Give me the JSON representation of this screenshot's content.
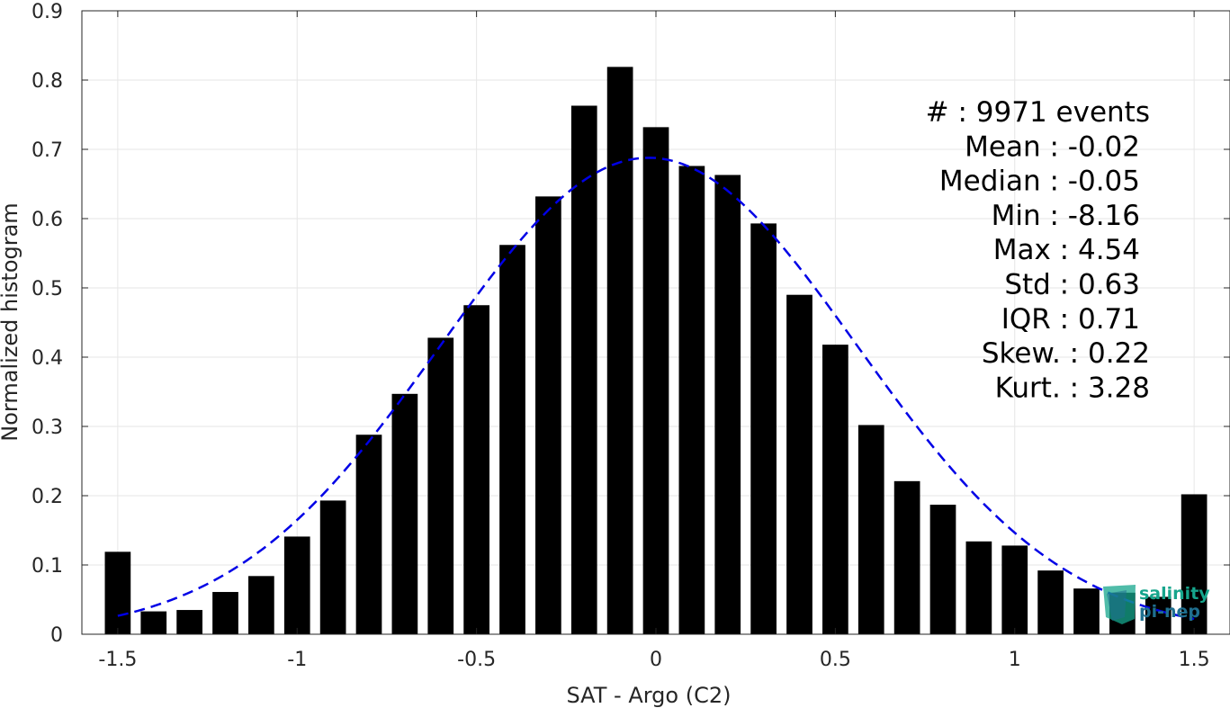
{
  "chart_data": {
    "type": "bar",
    "title": "",
    "xlabel": "SAT - Argo (C2)",
    "ylabel": "Normalized histogram",
    "xlim": [
      -1.6,
      1.6
    ],
    "ylim": [
      0,
      0.9
    ],
    "grid": true,
    "xticks": [
      -1.5,
      -1,
      -0.5,
      0,
      0.5,
      1,
      1.5
    ],
    "xtick_labels": [
      "-1.5",
      "-1",
      "-0.5",
      "0",
      "0.5",
      "1",
      "1.5"
    ],
    "yticks": [
      0,
      0.1,
      0.2,
      0.3,
      0.4,
      0.5,
      0.6,
      0.7,
      0.8,
      0.9
    ],
    "ytick_labels": [
      "0",
      "0.1",
      "0.2",
      "0.3",
      "0.4",
      "0.5",
      "0.6",
      "0.7",
      "0.8",
      "0.9"
    ],
    "bar_color": "#000000",
    "bin_width": 0.1,
    "x": [
      -1.5,
      -1.4,
      -1.3,
      -1.2,
      -1.1,
      -1.0,
      -0.9,
      -0.8,
      -0.7,
      -0.6,
      -0.5,
      -0.4,
      -0.3,
      -0.2,
      -0.1,
      0.0,
      0.1,
      0.2,
      0.3,
      0.4,
      0.5,
      0.6,
      0.7,
      0.8,
      0.9,
      1.0,
      1.1,
      1.2,
      1.3,
      1.4,
      1.5
    ],
    "values": [
      0.119,
      0.033,
      0.035,
      0.061,
      0.084,
      0.141,
      0.193,
      0.288,
      0.347,
      0.428,
      0.475,
      0.562,
      0.632,
      0.763,
      0.819,
      0.732,
      0.676,
      0.663,
      0.593,
      0.49,
      0.418,
      0.302,
      0.221,
      0.187,
      0.134,
      0.128,
      0.092,
      0.066,
      0.06,
      0.054,
      0.202
    ],
    "fit_curve": {
      "type": "gaussian",
      "color": "#0000e6",
      "style": "dashed",
      "mean": -0.02,
      "std": 0.58,
      "x_range": [
        -1.5,
        1.5
      ]
    },
    "annotations": [
      "#  : 9971 events",
      "Mean : -0.02",
      "Median : -0.05",
      "Min : -8.16",
      "Max : 4.54",
      "Std : 0.63",
      "IQR : 0.71",
      "Skew. : 0.22",
      "Kurt. : 3.28"
    ]
  },
  "logo": {
    "line1": "salinity",
    "line2": "pi-nep",
    "color_primary": "#16a58c",
    "color_secondary": "#1f6f8f"
  }
}
